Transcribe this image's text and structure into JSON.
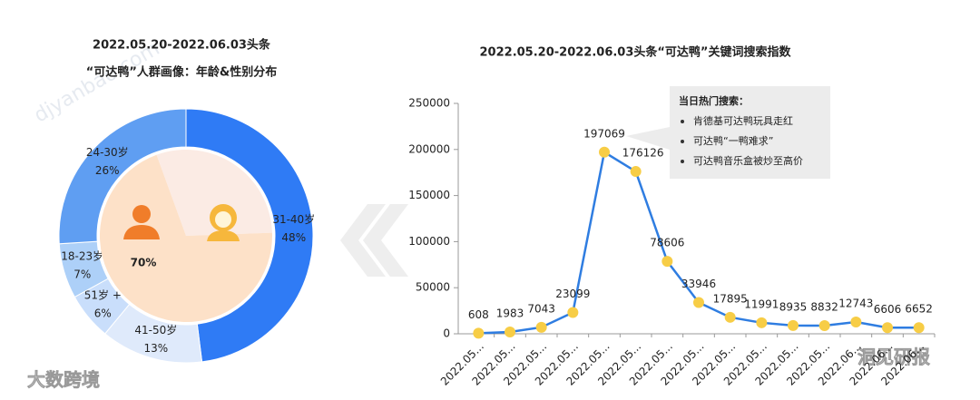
{
  "watermarks": [
    "djyanbao.com",
    "大数跨境",
    "洞见研报"
  ],
  "chart_data": [
    {
      "type": "donut",
      "title": "2022.05.20-2022.06.03头条",
      "subtitle": "“可达鸭”人群画像：年龄&性别分布",
      "categories": [
        "31-40岁",
        "41-50岁",
        "51岁 +",
        "18-23岁",
        "24-30岁"
      ],
      "values": [
        48,
        13,
        6,
        7,
        26
      ],
      "value_labels": [
        "48%",
        "13%",
        "6%",
        "7%",
        "26%"
      ],
      "colors": [
        "#2f7bf5",
        "#dfeafb",
        "#c9defb",
        "#add0f8",
        "#5f9ef2"
      ],
      "inner": {
        "values": [
          30,
          70
        ],
        "value_labels": [
          "30%",
          "70%"
        ],
        "colors": [
          "#fbebe4",
          "#fde1c8"
        ]
      }
    },
    {
      "type": "line",
      "title": "2022.05.20-2022.06.03头条“可达鸭”关键词搜索指数",
      "categories": [
        "2022.05...",
        "2022.05...",
        "2022.05...",
        "2022.05...",
        "2022.05...",
        "2022.05...",
        "2022.05...",
        "2022.05...",
        "2022.05...",
        "2022.05...",
        "2022.05...",
        "2022.05...",
        "2022.06...",
        "2022.06...",
        "2022.06..."
      ],
      "series": [
        {
          "color": "#2f7de1",
          "marker_color": "#f7cd46",
          "values": [
            608,
            1983,
            7043,
            23099,
            197069,
            176126,
            78606,
            33946,
            17895,
            11991,
            8935,
            8832,
            12743,
            6606,
            6652
          ]
        }
      ],
      "ylim": [
        0,
        250000
      ],
      "yticks": [
        0,
        50000,
        100000,
        150000,
        200000,
        250000
      ],
      "annotation": {
        "title": "当日热门搜索：",
        "items": [
          "肯德基可达鸭玩具走红",
          "可达鸭“一鸭难求”",
          "可达鸭音乐盒被炒至高价"
        ]
      }
    }
  ]
}
